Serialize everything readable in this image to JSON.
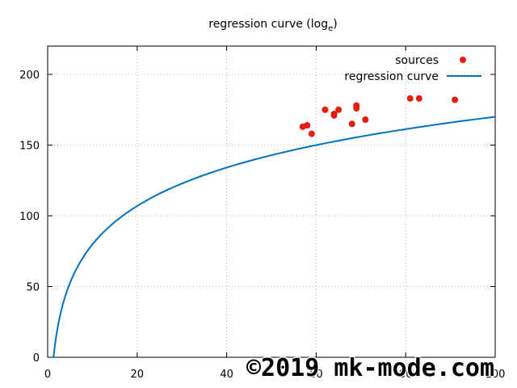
{
  "chart_data": {
    "type": "scatter",
    "title": "regression curve (log",
    "title_subscript": "e",
    "title_suffix": ")",
    "xlabel": "",
    "ylabel": "",
    "xlim": [
      0,
      100
    ],
    "ylim": [
      0,
      220
    ],
    "x_ticks": [
      0,
      20,
      40,
      60,
      80,
      100
    ],
    "y_ticks": [
      0,
      50,
      100,
      150,
      200
    ],
    "grid": true,
    "legend_placement": "top-right",
    "series": [
      {
        "name": "sources",
        "kind": "points",
        "color": "#e51e10",
        "points": [
          [
            57,
            163
          ],
          [
            58,
            164
          ],
          [
            59,
            158
          ],
          [
            62,
            175
          ],
          [
            64,
            172
          ],
          [
            64,
            171
          ],
          [
            65,
            175
          ],
          [
            68,
            165
          ],
          [
            69,
            178
          ],
          [
            69,
            176
          ],
          [
            71,
            168
          ],
          [
            81,
            183
          ],
          [
            83,
            183
          ],
          [
            91,
            182
          ]
        ]
      },
      {
        "name": "regression curve",
        "kind": "curve",
        "color": "#0072bd",
        "formula": "y = a + b * ln(x)",
        "a": -10.5,
        "b": 39.2
      }
    ]
  },
  "watermark": "©2019 mk-mode.com"
}
